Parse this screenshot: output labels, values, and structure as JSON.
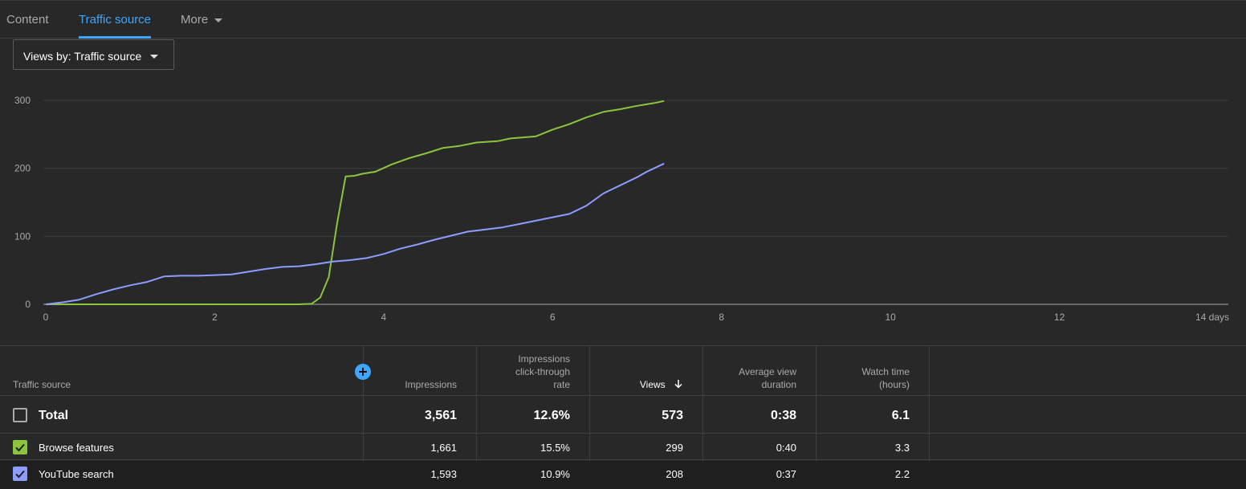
{
  "tabs": [
    {
      "label": "Content"
    },
    {
      "label": "Traffic source"
    },
    {
      "label": "More"
    }
  ],
  "dropdown": {
    "label": "Views by: Traffic source"
  },
  "colors": {
    "accent": "#3ea6ff",
    "browse_features": "#8bc53f",
    "youtube_search": "#8c9cff",
    "background": "#282828"
  },
  "chart_data": {
    "type": "line",
    "title": "",
    "xlabel": "",
    "ylabel": "",
    "xlim": [
      0,
      14
    ],
    "ylim": [
      0,
      300
    ],
    "x_ticks": [
      "0",
      "2",
      "4",
      "6",
      "8",
      "10",
      "12",
      "14 days"
    ],
    "y_ticks": [
      "0",
      "100",
      "200",
      "300"
    ],
    "grid": true,
    "series": [
      {
        "name": "Browse features",
        "color": "#8bc53f",
        "points": [
          [
            0,
            0
          ],
          [
            3.0,
            0
          ],
          [
            3.15,
            1
          ],
          [
            3.25,
            10
          ],
          [
            3.35,
            40
          ],
          [
            3.45,
            120
          ],
          [
            3.55,
            188
          ],
          [
            3.65,
            189
          ],
          [
            3.75,
            192
          ],
          [
            3.9,
            195
          ],
          [
            4.1,
            206
          ],
          [
            4.3,
            215
          ],
          [
            4.5,
            222
          ],
          [
            4.7,
            230
          ],
          [
            4.9,
            233
          ],
          [
            5.1,
            238
          ],
          [
            5.35,
            240
          ],
          [
            5.5,
            244
          ],
          [
            5.8,
            247
          ],
          [
            6.0,
            257
          ],
          [
            6.2,
            265
          ],
          [
            6.4,
            275
          ],
          [
            6.6,
            283
          ],
          [
            6.8,
            287
          ],
          [
            7.0,
            292
          ],
          [
            7.1,
            294
          ],
          [
            7.2,
            296
          ],
          [
            7.32,
            299
          ]
        ]
      },
      {
        "name": "YouTube search",
        "color": "#8c9cff",
        "points": [
          [
            0,
            0
          ],
          [
            0.2,
            3
          ],
          [
            0.4,
            7
          ],
          [
            0.6,
            15
          ],
          [
            0.8,
            22
          ],
          [
            1.0,
            28
          ],
          [
            1.2,
            33
          ],
          [
            1.4,
            41
          ],
          [
            1.6,
            42
          ],
          [
            1.8,
            42
          ],
          [
            2.0,
            43
          ],
          [
            2.2,
            44
          ],
          [
            2.4,
            48
          ],
          [
            2.6,
            52
          ],
          [
            2.8,
            55
          ],
          [
            3.0,
            56
          ],
          [
            3.2,
            59
          ],
          [
            3.4,
            63
          ],
          [
            3.6,
            65
          ],
          [
            3.8,
            68
          ],
          [
            4.0,
            74
          ],
          [
            4.2,
            82
          ],
          [
            4.4,
            88
          ],
          [
            4.6,
            95
          ],
          [
            4.8,
            101
          ],
          [
            5.0,
            107
          ],
          [
            5.2,
            110
          ],
          [
            5.4,
            113
          ],
          [
            5.6,
            118
          ],
          [
            5.8,
            123
          ],
          [
            6.0,
            128
          ],
          [
            6.2,
            133
          ],
          [
            6.4,
            145
          ],
          [
            6.6,
            163
          ],
          [
            6.8,
            175
          ],
          [
            7.0,
            187
          ],
          [
            7.1,
            194
          ],
          [
            7.2,
            200
          ],
          [
            7.32,
            207
          ]
        ]
      }
    ]
  },
  "table": {
    "headers": {
      "source": "Traffic source",
      "impressions": "Impressions",
      "ctr_line1": "Impressions",
      "ctr_line2": "click-through",
      "ctr_line3": "rate",
      "views": "Views",
      "avd_line1": "Average view",
      "avd_line2": "duration",
      "watch_line1": "Watch time",
      "watch_line2": "(hours)"
    },
    "total": {
      "label": "Total",
      "impressions": "3,561",
      "ctr": "12.6%",
      "views": "573",
      "avd": "0:38",
      "watch": "6.1"
    },
    "rows": [
      {
        "label": "Browse features",
        "impressions": "1,661",
        "ctr": "15.5%",
        "views": "299",
        "avd": "0:40",
        "watch": "3.3",
        "color": "#8bc53f"
      },
      {
        "label": "YouTube search",
        "impressions": "1,593",
        "ctr": "10.9%",
        "views": "208",
        "avd": "0:37",
        "watch": "2.2",
        "color": "#8c9cff"
      }
    ]
  }
}
